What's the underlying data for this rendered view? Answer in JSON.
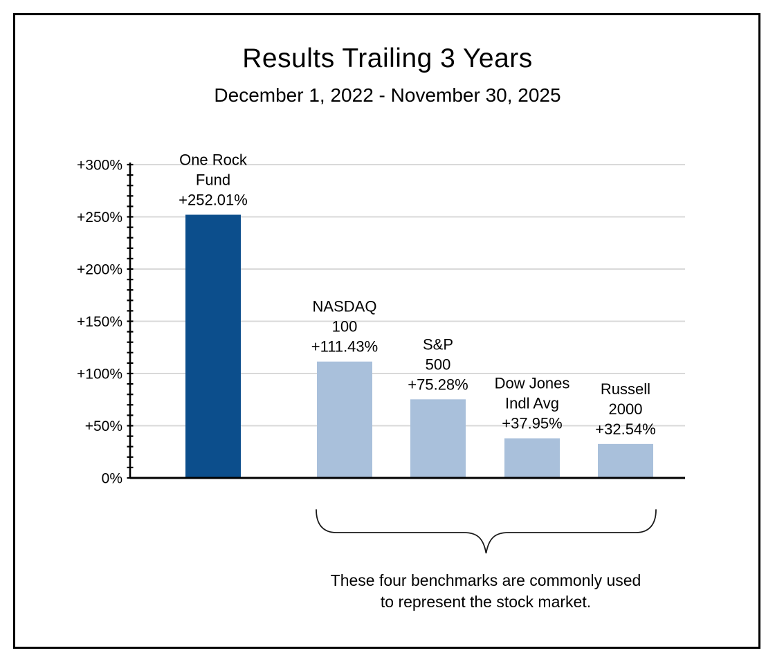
{
  "header": {
    "title": "Results Trailing 3 Years",
    "subtitle": "December 1, 2022 - November 30, 2025"
  },
  "chart_data": {
    "type": "bar",
    "title": "Results Trailing 3 Years",
    "subtitle": "December 1, 2022 - November 30, 2025",
    "categories": [
      "One Rock Fund",
      "NASDAQ 100",
      "S&P 500",
      "Dow Jones Indl Avg",
      "Russell 2000"
    ],
    "values": [
      252.01,
      111.43,
      75.28,
      37.95,
      32.54
    ],
    "bar_labels": [
      [
        "One Rock",
        "Fund",
        "+252.01%"
      ],
      [
        "NASDAQ",
        "100",
        "+111.43%"
      ],
      [
        "S&P",
        "500",
        "+75.28%"
      ],
      [
        "Dow Jones",
        "Indl Avg",
        "+37.95%"
      ],
      [
        "Russell",
        "2000",
        "+32.54%"
      ]
    ],
    "colors": [
      "#0C4E8C",
      "#A9C0DB",
      "#A9C0DB",
      "#A9C0DB",
      "#A9C0DB"
    ],
    "xlabel": "",
    "ylabel": "",
    "ylim": [
      0,
      300
    ],
    "y_major_step": 50,
    "y_minor_step": 10,
    "y_ticks": [
      {
        "value": 0,
        "label": "0%"
      },
      {
        "value": 50,
        "label": "+50%"
      },
      {
        "value": 100,
        "label": "+100%"
      },
      {
        "value": 150,
        "label": "+150%"
      },
      {
        "value": 200,
        "label": "+200%"
      },
      {
        "value": 250,
        "label": "+250%"
      },
      {
        "value": 300,
        "label": "+300%"
      }
    ],
    "grid": true,
    "gridline_color": "#D9D9D9",
    "axis_color": "#000000",
    "legend": "none"
  },
  "annotation": {
    "brace_targets": [
      "NASDAQ 100",
      "S&P 500",
      "Dow Jones Indl Avg",
      "Russell 2000"
    ],
    "footnote": [
      "These four benchmarks are commonly used",
      "to represent the stock market."
    ]
  }
}
